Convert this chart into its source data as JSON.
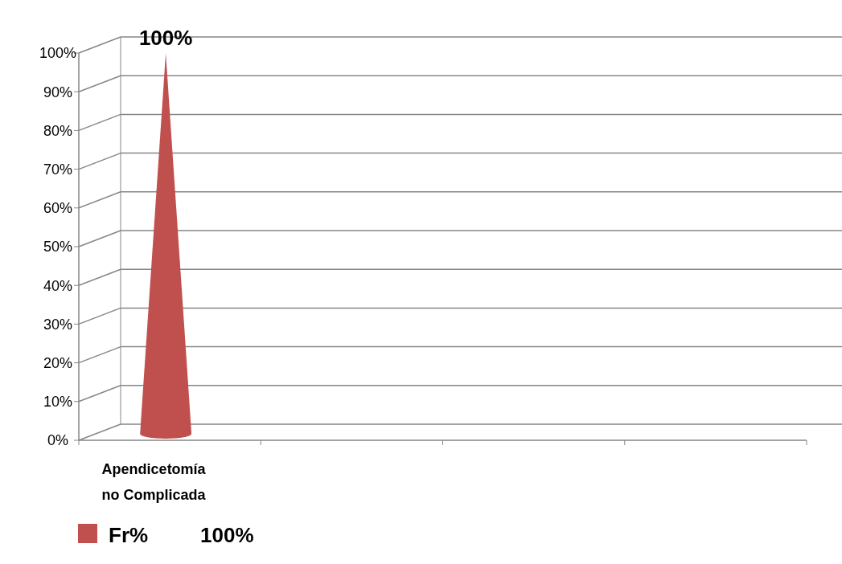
{
  "chart_data": {
    "type": "bar",
    "categories": [
      "Apendicetomía no Complicada",
      null,
      null,
      null
    ],
    "series": [
      {
        "name": "Fr%",
        "color": "#c0504d",
        "values": [
          100,
          null,
          null,
          null
        ],
        "value_labels": [
          "100%",
          null,
          null,
          null
        ]
      }
    ],
    "ylim": [
      0,
      100
    ],
    "yticks": [
      {
        "value": 0,
        "label": "0%"
      },
      {
        "value": 10,
        "label": "10%"
      },
      {
        "value": 20,
        "label": "20%"
      },
      {
        "value": 30,
        "label": "30%"
      },
      {
        "value": 40,
        "label": "40%"
      },
      {
        "value": 50,
        "label": "50%"
      },
      {
        "value": 60,
        "label": "60%"
      },
      {
        "value": 70,
        "label": "70%"
      },
      {
        "value": 80,
        "label": "80%"
      },
      {
        "value": 90,
        "label": "90%"
      },
      {
        "value": 100,
        "label": "100%"
      }
    ],
    "grid": "y",
    "legend": "bottom left"
  }
}
